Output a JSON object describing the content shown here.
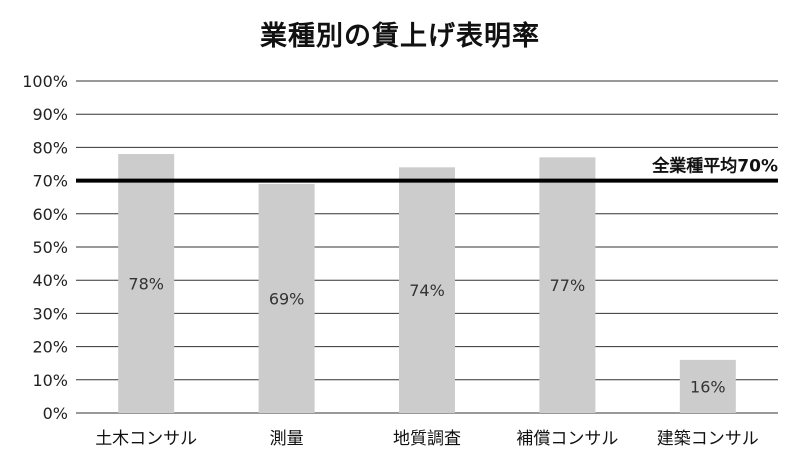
{
  "chart_data": {
    "type": "bar",
    "title": "業種別の賃上げ表明率",
    "categories": [
      "土木コンサル",
      "測量",
      "地質調査",
      "補償コンサル",
      "建築コンサル"
    ],
    "values": [
      78,
      69,
      74,
      77,
      16
    ],
    "data_labels": [
      "78%",
      "69%",
      "74%",
      "77%",
      "16%"
    ],
    "ylim": [
      0,
      100
    ],
    "yticks": [
      0,
      10,
      20,
      30,
      40,
      50,
      60,
      70,
      80,
      90,
      100
    ],
    "ytick_labels": [
      "0%",
      "10%",
      "20%",
      "30%",
      "40%",
      "50%",
      "60%",
      "70%",
      "80%",
      "90%",
      "100%"
    ],
    "xlabel": "",
    "ylabel": "",
    "grid": true,
    "reference_line": {
      "value": 70,
      "label": "全業種平均70%"
    },
    "colors": {
      "bar": "#cccccc",
      "reference_line": "#000000",
      "grid": "#333333"
    }
  }
}
